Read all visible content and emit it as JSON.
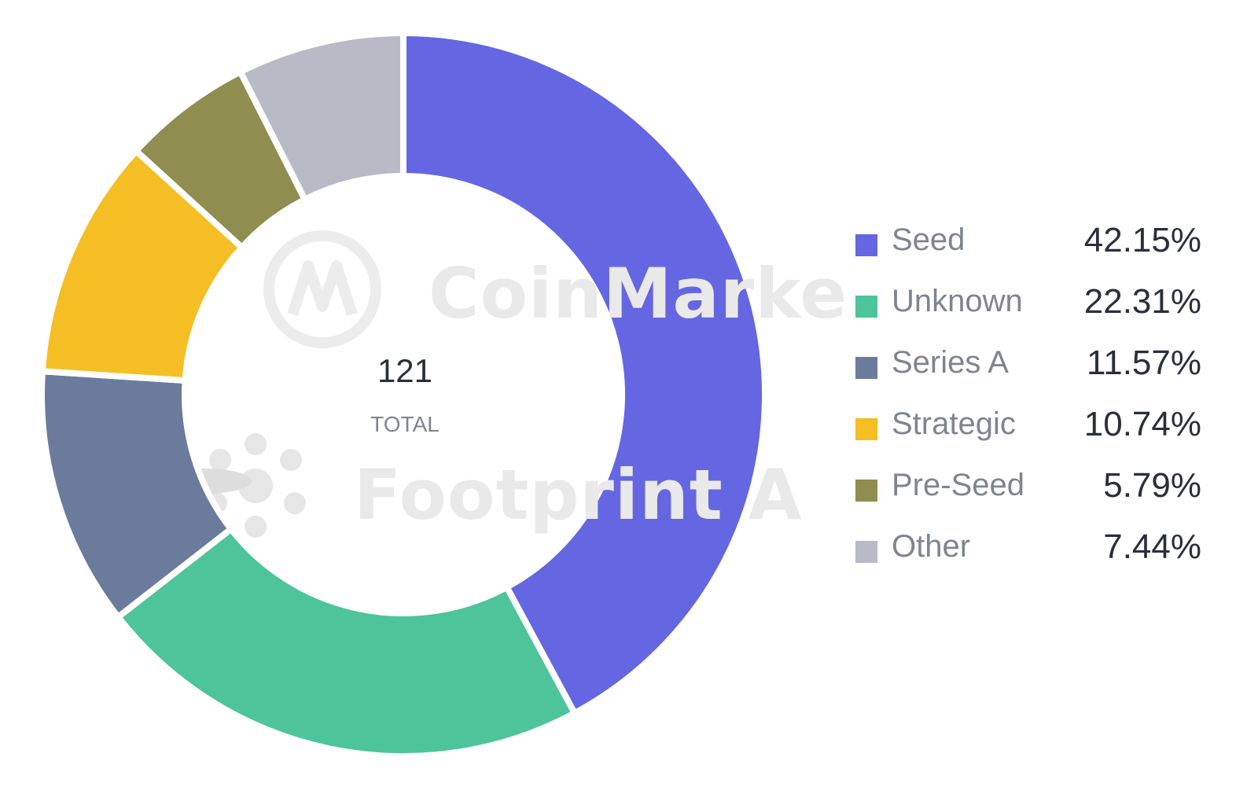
{
  "watermarks": {
    "primary": "CoinMarke",
    "secondary": "Footprint A"
  },
  "center": {
    "total": "121",
    "caption": "TOTAL"
  },
  "chart_data": {
    "type": "pie",
    "donut": true,
    "total": 121,
    "start_angle_deg": 0,
    "direction": "clockwise",
    "categories": [
      "Seed",
      "Unknown",
      "Series A",
      "Strategic",
      "Pre-Seed",
      "Other"
    ],
    "values": [
      42.15,
      22.31,
      11.57,
      10.74,
      5.79,
      7.44
    ],
    "value_labels": [
      "42.15%",
      "22.31%",
      "11.57%",
      "10.74%",
      "5.79%",
      "7.44%"
    ],
    "colors": [
      "#6466e2",
      "#4dc49a",
      "#6b7b9c",
      "#f5be24",
      "#8f8d4f",
      "#b8bbc6"
    ],
    "legend_position": "right"
  }
}
